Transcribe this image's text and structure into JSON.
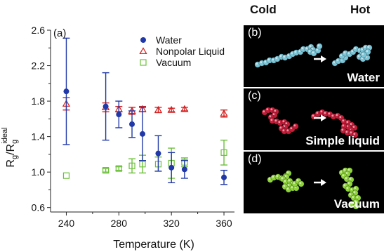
{
  "chart_data": {
    "type": "scatter",
    "panel_label": "(a)",
    "xlabel": "Temperature (K)",
    "ylabel_main": "R",
    "ylabel_sub": "g",
    "ylabel_denom_sub": "g",
    "ylabel_sup": "ideal",
    "xlim": [
      228,
      368
    ],
    "ylim": [
      0.55,
      2.6
    ],
    "xticks": [
      240,
      280,
      320,
      360
    ],
    "yticks": [
      0.6,
      1.0,
      1.4,
      1.8,
      2.2,
      2.6
    ],
    "xtick_labels": [
      "240",
      "280",
      "320",
      "360"
    ],
    "ytick_labels": [
      "0.6",
      "1.0",
      "1.4",
      "1.8",
      "2.2",
      "2.6"
    ],
    "legend_position": "top-right",
    "series": [
      {
        "name": "Water",
        "marker": "filled-circle",
        "color": "#2038a8",
        "points": [
          {
            "x": 240,
            "y": 1.91,
            "err": 0.6
          },
          {
            "x": 270,
            "y": 1.74,
            "err": 0.38
          },
          {
            "x": 280,
            "y": 1.65,
            "err": 0.15
          },
          {
            "x": 290,
            "y": 1.54,
            "err": 0.15
          },
          {
            "x": 298,
            "y": 1.43,
            "err": 0.3
          },
          {
            "x": 310,
            "y": 1.21,
            "err": 0.2
          },
          {
            "x": 320,
            "y": 1.05,
            "err": 0.17
          },
          {
            "x": 330,
            "y": 1.03,
            "err": 0.1
          },
          {
            "x": 360,
            "y": 0.94,
            "err": 0.08
          }
        ]
      },
      {
        "name": "Nonpolar Liquid",
        "marker": "open-triangle",
        "color": "#d42020",
        "points": [
          {
            "x": 240,
            "y": 1.77,
            "err": 0.07
          },
          {
            "x": 270,
            "y": 1.73,
            "err": 0.05
          },
          {
            "x": 280,
            "y": 1.71,
            "err": 0.03
          },
          {
            "x": 290,
            "y": 1.69,
            "err": 0.04
          },
          {
            "x": 298,
            "y": 1.71,
            "err": 0.03
          },
          {
            "x": 310,
            "y": 1.7,
            "err": 0.03
          },
          {
            "x": 320,
            "y": 1.7,
            "err": 0.02
          },
          {
            "x": 330,
            "y": 1.71,
            "err": 0.02
          },
          {
            "x": 360,
            "y": 1.66,
            "err": 0.04
          }
        ]
      },
      {
        "name": "Vacuum",
        "marker": "open-square",
        "color": "#6cc03a",
        "points": [
          {
            "x": 240,
            "y": 0.96,
            "err": 0.0
          },
          {
            "x": 270,
            "y": 1.02,
            "err": 0.02
          },
          {
            "x": 280,
            "y": 1.04,
            "err": 0.02
          },
          {
            "x": 290,
            "y": 1.07,
            "err": 0.08
          },
          {
            "x": 298,
            "y": 1.09,
            "err": 0.1
          },
          {
            "x": 310,
            "y": 1.09,
            "err": 0.08
          },
          {
            "x": 320,
            "y": 1.1,
            "err": 0.17
          },
          {
            "x": 330,
            "y": 1.11,
            "err": 0.05
          },
          {
            "x": 360,
            "y": 1.22,
            "err": 0.14
          }
        ]
      }
    ]
  },
  "headers": {
    "cold": "Cold",
    "hot": "Hot"
  },
  "panels": [
    {
      "label": "(b)",
      "caption": "Water",
      "color": "#7cc6d8"
    },
    {
      "label": "(c)",
      "caption": "Simple liquid",
      "color": "#c41e3a"
    },
    {
      "label": "(d)",
      "caption": "Vacuum",
      "color": "#8fd43c"
    }
  ]
}
